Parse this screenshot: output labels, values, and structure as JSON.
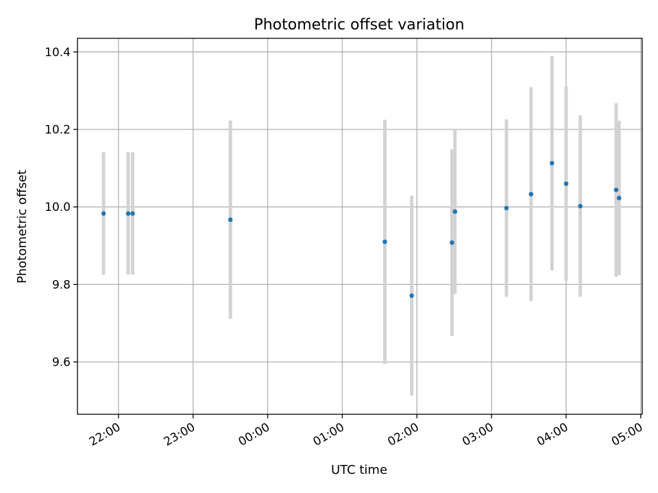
{
  "chart_data": {
    "type": "scatter",
    "title": "Photometric offset variation",
    "xlabel": "UTC time",
    "ylabel": "Photometric offset",
    "x_unit": "UTC time (hours, continuing past midnight)",
    "xlim": [
      21.45,
      29.02
    ],
    "ylim": [
      9.465,
      10.435
    ],
    "x_ticks": [
      22,
      23,
      24,
      25,
      26,
      27,
      28,
      29
    ],
    "x_tick_labels": [
      "22:00",
      "23:00",
      "00:00",
      "01:00",
      "02:00",
      "03:00",
      "04:00",
      "05:00"
    ],
    "y_ticks": [
      9.6,
      9.8,
      10.0,
      10.2,
      10.4
    ],
    "y_tick_labels": [
      "9.6",
      "9.8",
      "10.0",
      "10.2",
      "10.4"
    ],
    "grid": true,
    "point_color": "#1f77b4",
    "errorbar_color": "#d3d3d3",
    "points": [
      {
        "x": 21.8,
        "y": 9.983,
        "err": 0.158
      },
      {
        "x": 22.13,
        "y": 9.983,
        "err": 0.158
      },
      {
        "x": 22.19,
        "y": 9.983,
        "err": 0.158
      },
      {
        "x": 23.5,
        "y": 9.967,
        "err": 0.256
      },
      {
        "x": 25.57,
        "y": 9.91,
        "err": 0.315
      },
      {
        "x": 25.93,
        "y": 9.771,
        "err": 0.258
      },
      {
        "x": 26.47,
        "y": 9.908,
        "err": 0.241
      },
      {
        "x": 26.51,
        "y": 9.988,
        "err": 0.212
      },
      {
        "x": 27.2,
        "y": 9.997,
        "err": 0.229
      },
      {
        "x": 27.53,
        "y": 10.033,
        "err": 0.276
      },
      {
        "x": 27.81,
        "y": 10.113,
        "err": 0.277
      },
      {
        "x": 28.0,
        "y": 10.06,
        "err": 0.251
      },
      {
        "x": 28.19,
        "y": 10.002,
        "err": 0.234
      },
      {
        "x": 28.67,
        "y": 10.044,
        "err": 0.224
      },
      {
        "x": 28.71,
        "y": 10.023,
        "err": 0.199
      }
    ]
  }
}
